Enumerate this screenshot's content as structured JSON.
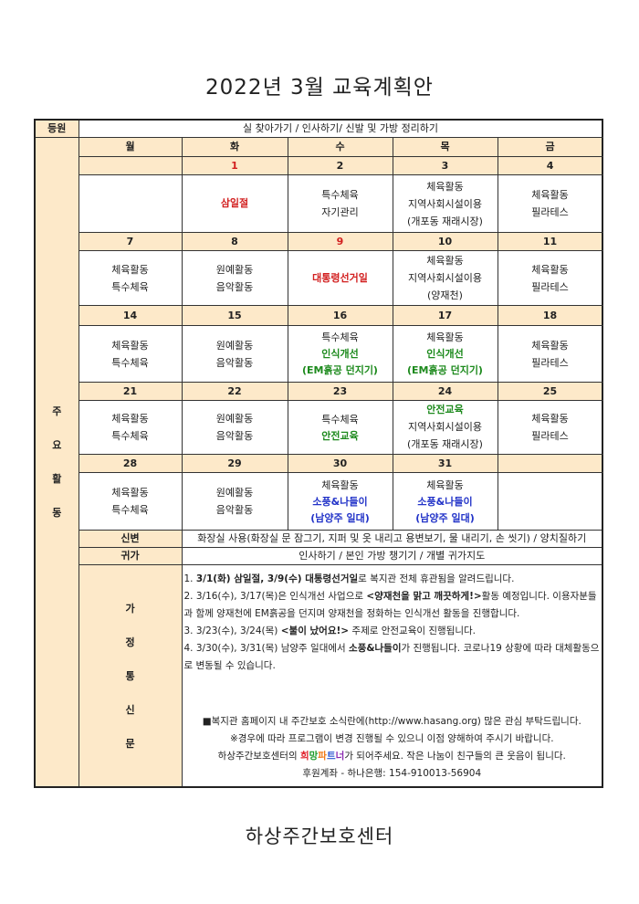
{
  "title": "2022년 3월 교육계획안",
  "arrival": {
    "label": "등원",
    "text": "실 찾아가기 / 인사하기/ 신발 및 가방 정리하기"
  },
  "main_label": [
    "주",
    "요",
    "활",
    "동"
  ],
  "weekdays": [
    "월",
    "화",
    "수",
    "목",
    "금"
  ],
  "weeks": [
    [
      {
        "date": "",
        "lines": []
      },
      {
        "date": "1",
        "date_color": "red",
        "lines": [
          {
            "text": "삼일절",
            "style": "red"
          }
        ]
      },
      {
        "date": "2",
        "lines": [
          {
            "text": "특수체육"
          },
          {
            "text": "자기관리"
          }
        ]
      },
      {
        "date": "3",
        "lines": [
          {
            "text": "체육활동"
          },
          {
            "text": "지역사회시설이용"
          },
          {
            "text": "(개포동 재래시장)"
          }
        ]
      },
      {
        "date": "4",
        "lines": [
          {
            "text": "체육활동"
          },
          {
            "text": "필라테스"
          }
        ]
      }
    ],
    [
      {
        "date": "7",
        "lines": [
          {
            "text": "체육활동"
          },
          {
            "text": "특수체육"
          }
        ]
      },
      {
        "date": "8",
        "lines": [
          {
            "text": "원예활동"
          },
          {
            "text": "음악활동"
          }
        ]
      },
      {
        "date": "9",
        "date_color": "red",
        "lines": [
          {
            "text": "대통령선거일",
            "style": "red"
          }
        ]
      },
      {
        "date": "10",
        "lines": [
          {
            "text": "체육활동"
          },
          {
            "text": "지역사회시설이용"
          },
          {
            "text": "(양재천)"
          }
        ]
      },
      {
        "date": "11",
        "lines": [
          {
            "text": "체육활동"
          },
          {
            "text": "필라테스"
          }
        ]
      }
    ],
    [
      {
        "date": "14",
        "lines": [
          {
            "text": "체육활동"
          },
          {
            "text": "특수체육"
          }
        ]
      },
      {
        "date": "15",
        "lines": [
          {
            "text": "원예활동"
          },
          {
            "text": "음악활동"
          }
        ]
      },
      {
        "date": "16",
        "lines": [
          {
            "text": "특수체육"
          },
          {
            "text": "인식개선",
            "style": "green"
          },
          {
            "text": "(EM흙공 던지기)",
            "style": "green"
          }
        ]
      },
      {
        "date": "17",
        "lines": [
          {
            "text": "체육활동"
          },
          {
            "text": "인식개선",
            "style": "green"
          },
          {
            "text": "(EM흙공 던지기)",
            "style": "green"
          }
        ]
      },
      {
        "date": "18",
        "lines": [
          {
            "text": "체육활동"
          },
          {
            "text": "필라테스"
          }
        ]
      }
    ],
    [
      {
        "date": "21",
        "lines": [
          {
            "text": "체육활동"
          },
          {
            "text": "특수체육"
          }
        ]
      },
      {
        "date": "22",
        "lines": [
          {
            "text": "원예활동"
          },
          {
            "text": "음악활동"
          }
        ]
      },
      {
        "date": "23",
        "lines": [
          {
            "text": "특수체육"
          },
          {
            "text": "안전교육",
            "style": "green"
          }
        ]
      },
      {
        "date": "24",
        "lines": [
          {
            "text": "안전교육",
            "style": "green"
          },
          {
            "text": "지역사회시설이용"
          },
          {
            "text": "(개포동 재래시장)"
          }
        ]
      },
      {
        "date": "25",
        "lines": [
          {
            "text": "체육활동"
          },
          {
            "text": "필라테스"
          }
        ]
      }
    ],
    [
      {
        "date": "28",
        "lines": [
          {
            "text": "체육활동"
          },
          {
            "text": "특수체육"
          }
        ]
      },
      {
        "date": "29",
        "lines": [
          {
            "text": "원예활동"
          },
          {
            "text": "음악활동"
          }
        ]
      },
      {
        "date": "30",
        "lines": [
          {
            "text": "체육활동"
          },
          {
            "text": "소풍&나들이",
            "style": "blue"
          },
          {
            "text": "(남양주 일대)",
            "style": "blue"
          }
        ]
      },
      {
        "date": "31",
        "lines": [
          {
            "text": "체육활동"
          },
          {
            "text": "소풍&나들이",
            "style": "blue"
          },
          {
            "text": "(남양주 일대)",
            "style": "blue"
          }
        ]
      },
      {
        "date": "",
        "lines": []
      }
    ]
  ],
  "hygiene": {
    "label": "신변",
    "text": "화장실 사용(화장실 문 잠그기, 지퍼 및 옷 내리고 용변보기, 물 내리기, 손 씻기) / 양치질하기"
  },
  "departure": {
    "label": "귀가",
    "text": "인사하기 / 본인 가방 챙기기 / 개별 귀가지도"
  },
  "newsletter": {
    "label": [
      "가",
      "정",
      "통",
      "신",
      "문"
    ],
    "n1": {
      "pre": " 1. ",
      "bold": "3/1(화) 삼일절, 3/9(수) 대통령선거일",
      "post": "로 복지관 전체 휴관됨을 알려드립니다."
    },
    "n2": {
      "pre": " 2. 3/16(수), 3/17(목)은 인식개선 사업으로 ",
      "bold": "<양재천을 맑고 깨끗하게!>",
      "post": "활동 예정입니다. 이용자분들과 함께 양재천에 EM흙공을 던지며 양재천을 정화하는 인식개선 활동을 진행합니다."
    },
    "n3": {
      "pre": " 3. 3/23(수), 3/24(목) ",
      "bold": "<불이 났어요!>",
      "post": " 주제로 안전교육이 진행됩니다."
    },
    "n4": {
      "pre": " 4. 3/30(수), 3/31(목) 남양주 일대에서 ",
      "bold": "소풍&나들이",
      "post": "가 진행됩니다. 코로나19 상황에 따라 대체활동으로 변동될 수 있습니다."
    },
    "homepage": "■복지관 홈페이지 내 주간보호 소식란에(http://www.hasang.org) 많은 관심 부탁드립니다.",
    "caution": "※경우에 따라 프로그램이 변경 진행될 수 있으니 이점 양해하여 주시기 바랍니다.",
    "partner_pre": "하상주간보호센터의 ",
    "partner_chars": [
      {
        "text": "희",
        "color": "#e0202a"
      },
      {
        "text": "망",
        "color": "#1f9a2a"
      },
      {
        "text": "파",
        "color": "#f07a1a"
      },
      {
        "text": "트",
        "color": "#2a55d0"
      },
      {
        "text": "너",
        "color": "#8a2ab0"
      }
    ],
    "partner_post": "가 되어주세요. 작은 나눔이 친구들의 큰 웃음이 됩니다.",
    "account": "후원계좌 - 하나은행: 154-910013-56904"
  },
  "footer": "하상주간보호센터"
}
